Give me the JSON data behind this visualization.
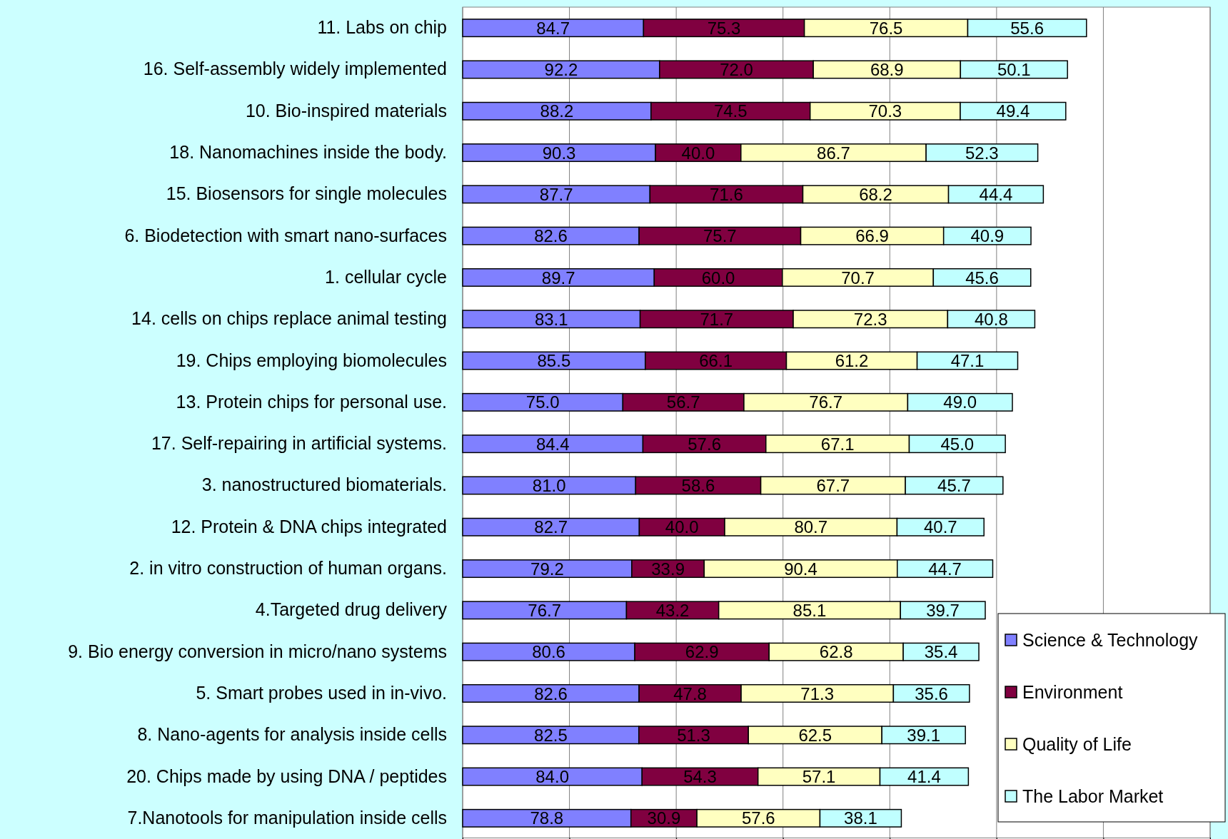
{
  "chart_data": {
    "type": "bar",
    "orientation": "horizontal",
    "stacked": true,
    "grid": "x",
    "legend": "bottom right",
    "tick_labels": "y",
    "categories": [
      "11. Labs on chip",
      "16. Self-assembly widely implemented",
      "10. Bio-inspired materials",
      "18. Nanomachines inside the body.",
      "15. Biosensors for single molecules",
      "6. Biodetection with smart nano-surfaces",
      "1. cellular cycle",
      "14. cells on chips replace animal testing",
      "19. Chips employing biomolecules",
      "13. Protein chips for personal use.",
      "17. Self-repairing in artificial systems.",
      "3. nanostructured biomaterials.",
      "12. Protein & DNA chips integrated",
      "2. in vitro construction of human organs.",
      "4.Targeted drug delivery",
      "9. Bio energy conversion in micro/nano systems",
      "5. Smart probes used in in-vivo.",
      "8. Nano-agents for analysis inside cells",
      "20. Chips made by using DNA / peptides",
      "7.Nanotools for manipulation inside cells"
    ],
    "xlim": [
      0,
      350
    ],
    "xticks": [
      {
        "value": 0,
        "label": null
      },
      {
        "value": 50,
        "label": null
      },
      {
        "value": 100,
        "label": null
      },
      {
        "value": 150,
        "label": null
      },
      {
        "value": 200,
        "label": null
      },
      {
        "value": 250,
        "label": null
      },
      {
        "value": 300,
        "label": null
      },
      {
        "value": 350,
        "label": null
      }
    ],
    "series": [
      {
        "name": "Science & Technology",
        "color": "#8080ff",
        "values": [
          84.7,
          92.2,
          88.2,
          90.3,
          87.7,
          82.6,
          89.7,
          83.1,
          85.5,
          75.0,
          84.4,
          81.0,
          82.7,
          79.2,
          76.7,
          80.6,
          82.6,
          82.5,
          84.0,
          78.8
        ],
        "value_labels": [
          "84.7",
          "92.2",
          "88.2",
          "90.3",
          "87.7",
          "82.6",
          "89.7",
          "83.1",
          "85.5",
          "75.0",
          "84.4",
          "81.0",
          "82.7",
          "79.2",
          "76.7",
          "80.6",
          "82.6",
          "82.5",
          "84.0",
          "78.8"
        ]
      },
      {
        "name": "Environment",
        "color": "#800040",
        "values": [
          75.3,
          72.0,
          74.5,
          40.0,
          71.6,
          75.7,
          60.0,
          71.7,
          66.1,
          56.7,
          57.6,
          58.6,
          40.0,
          33.9,
          43.2,
          62.9,
          47.8,
          51.3,
          54.3,
          30.9
        ],
        "value_labels": [
          "75.3",
          "72.0",
          "74.5",
          "40.0",
          "71.6",
          "75.7",
          "60.0",
          "71.7",
          "66.1",
          "56.7",
          "57.6",
          "58.6",
          "40.0",
          "33.9",
          "43.2",
          "62.9",
          "47.8",
          "51.3",
          "54.3",
          "30.9"
        ]
      },
      {
        "name": "Quality of Life",
        "color": "#ffffc0",
        "values": [
          76.5,
          68.9,
          70.3,
          86.7,
          68.2,
          66.9,
          70.7,
          72.3,
          61.2,
          76.7,
          67.1,
          67.7,
          80.7,
          90.4,
          85.1,
          62.8,
          71.3,
          62.5,
          57.1,
          57.6
        ],
        "value_labels": [
          "76.5",
          "68.9",
          "70.3",
          "86.7",
          "68.2",
          "66.9",
          "70.7",
          "72.3",
          "61.2",
          "76.7",
          "67.1",
          "67.7",
          "80.7",
          "90.4",
          "85.1",
          "62.8",
          "71.3",
          "62.5",
          "57.1",
          "57.6"
        ]
      },
      {
        "name": "The Labor Market",
        "color": "#c0ffff",
        "values": [
          55.6,
          50.1,
          49.4,
          52.3,
          44.4,
          40.9,
          45.6,
          40.8,
          47.1,
          49.0,
          45.0,
          45.7,
          40.7,
          44.7,
          39.7,
          35.4,
          35.6,
          39.1,
          41.4,
          38.1
        ],
        "value_labels": [
          "55.6",
          "50.1",
          "49.4",
          "52.3",
          "44.4",
          "40.9",
          "45.6",
          "40.8",
          "47.1",
          "49.0",
          "45.0",
          "45.7",
          "40.7",
          "44.7",
          "39.7",
          "35.4",
          "35.6",
          "39.1",
          "41.4",
          "38.1"
        ]
      }
    ]
  }
}
